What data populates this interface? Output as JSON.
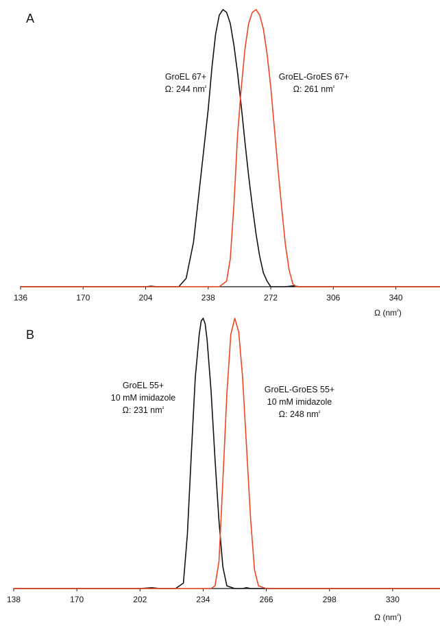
{
  "chart_data": [
    {
      "type": "line",
      "panel_label": "A",
      "xlabel": "Ω (nm²)",
      "ylabel": "",
      "xlim": [
        136,
        364
      ],
      "ylim": [
        0,
        1.0
      ],
      "x_ticks": [
        136,
        170,
        204,
        238,
        272,
        306,
        340
      ],
      "grid": false,
      "series": [
        {
          "color": "#111111",
          "x": [
            136,
            170,
            204,
            207,
            210,
            214,
            218,
            222,
            226,
            230,
            234,
            238,
            240,
            242,
            244,
            246,
            248,
            250,
            252,
            254,
            256,
            258,
            260,
            262,
            264,
            266,
            268,
            270,
            272,
            276,
            280,
            284,
            288,
            292,
            296,
            300,
            306,
            340,
            364
          ],
          "y": [
            0,
            0,
            0,
            0.002,
            0,
            0,
            0,
            0,
            0.03,
            0.16,
            0.4,
            0.64,
            0.79,
            0.91,
            0.98,
            1.0,
            0.99,
            0.95,
            0.87,
            0.77,
            0.65,
            0.52,
            0.4,
            0.29,
            0.19,
            0.11,
            0.05,
            0.02,
            0,
            0,
            0,
            0.003,
            0,
            0,
            0,
            0,
            0,
            0,
            0
          ]
        },
        {
          "color": "#ee4422",
          "x": [
            136,
            170,
            204,
            238,
            244,
            248,
            250,
            252,
            254,
            256,
            258,
            260,
            262,
            264,
            266,
            268,
            270,
            272,
            274,
            276,
            278,
            280,
            282,
            284,
            286,
            290,
            296,
            306,
            340,
            364
          ],
          "y": [
            0,
            0,
            0,
            0,
            0,
            0.02,
            0.1,
            0.3,
            0.55,
            0.72,
            0.86,
            0.95,
            0.99,
            1.0,
            0.98,
            0.93,
            0.84,
            0.72,
            0.57,
            0.42,
            0.28,
            0.15,
            0.06,
            0.01,
            0,
            0,
            0,
            0,
            0,
            0
          ]
        }
      ],
      "annotations": [
        {
          "lines": [
            "GroEL 67+",
            "Ω:  244 nm²"
          ]
        },
        {
          "lines": [
            "GroEL-GroES 67+",
            "Ω:  261 nm²"
          ]
        }
      ]
    },
    {
      "type": "line",
      "panel_label": "B",
      "xlabel": "Ω (nm²)",
      "ylabel": "",
      "xlim": [
        138,
        354
      ],
      "ylim": [
        0,
        1.0
      ],
      "x_ticks": [
        138,
        170,
        202,
        234,
        266,
        298,
        330
      ],
      "grid": false,
      "series": [
        {
          "color": "#111111",
          "x": [
            138,
            170,
            202,
            208,
            212,
            220,
            224,
            226,
            228,
            230,
            232,
            233,
            234,
            235,
            236,
            238,
            240,
            242,
            244,
            246,
            250,
            254,
            256,
            258,
            266,
            298,
            330,
            354
          ],
          "y": [
            0,
            0,
            0,
            0.003,
            0,
            0,
            0.02,
            0.2,
            0.5,
            0.78,
            0.94,
            0.99,
            1.0,
            0.98,
            0.92,
            0.73,
            0.48,
            0.25,
            0.08,
            0.01,
            0,
            0,
            0.003,
            0,
            0,
            0,
            0,
            0
          ]
        },
        {
          "color": "#ee4422",
          "x": [
            138,
            170,
            202,
            234,
            238,
            240,
            242,
            244,
            246,
            248,
            250,
            252,
            254,
            256,
            258,
            260,
            262,
            266,
            298,
            330,
            354
          ],
          "y": [
            0,
            0,
            0,
            0,
            0,
            0.01,
            0.1,
            0.4,
            0.72,
            0.94,
            1.0,
            0.95,
            0.78,
            0.52,
            0.26,
            0.07,
            0.01,
            0,
            0,
            0,
            0
          ]
        }
      ],
      "annotations": [
        {
          "lines": [
            "GroEL 55+",
            "10 mM imidazole",
            "Ω:  231 nm²"
          ]
        },
        {
          "lines": [
            "GroEL-GroES 55+",
            "10 mM imidazole",
            "Ω:  248 nm²"
          ]
        }
      ]
    }
  ]
}
